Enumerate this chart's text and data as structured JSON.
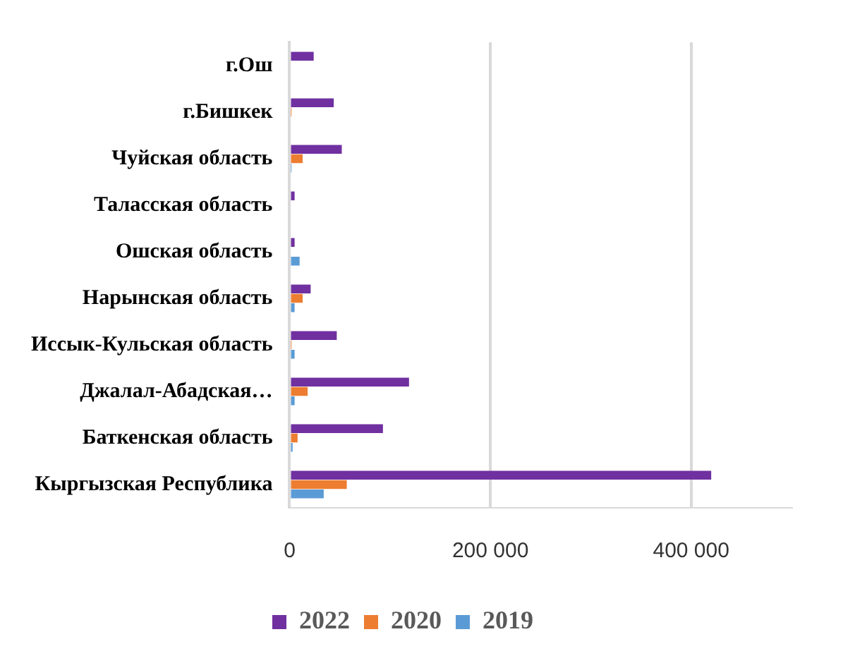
{
  "chart_data": {
    "type": "bar",
    "orientation": "horizontal",
    "categories": [
      "г.Ош",
      "г.Бишкек",
      "Чуйская область",
      "Таласская область",
      "Ошская область",
      "Нарынская область",
      "Иссык-Кульская область",
      "Джалал-Абадская…",
      "Баткенская область",
      "Кыргызская Республика"
    ],
    "series": [
      {
        "name": "2022",
        "color": "#7030a0",
        "values": [
          24000,
          44000,
          52000,
          5000,
          5000,
          21000,
          47000,
          119000,
          93000,
          420000
        ]
      },
      {
        "name": "2020",
        "color": "#ed7d31",
        "values": [
          null,
          2000,
          13000,
          null,
          null,
          13000,
          2000,
          18000,
          8000,
          57000
        ]
      },
      {
        "name": "2019",
        "color": "#5b9bd5",
        "values": [
          null,
          null,
          2000,
          null,
          10000,
          5000,
          5000,
          5000,
          3000,
          34000
        ]
      }
    ],
    "xlim": [
      0,
      500000
    ],
    "xticks": [
      {
        "value": 0,
        "label": "0"
      },
      {
        "value": 200000,
        "label": "200 000"
      },
      {
        "value": 400000,
        "label": "400 000"
      }
    ],
    "grid": "x",
    "legend": "bottom"
  }
}
